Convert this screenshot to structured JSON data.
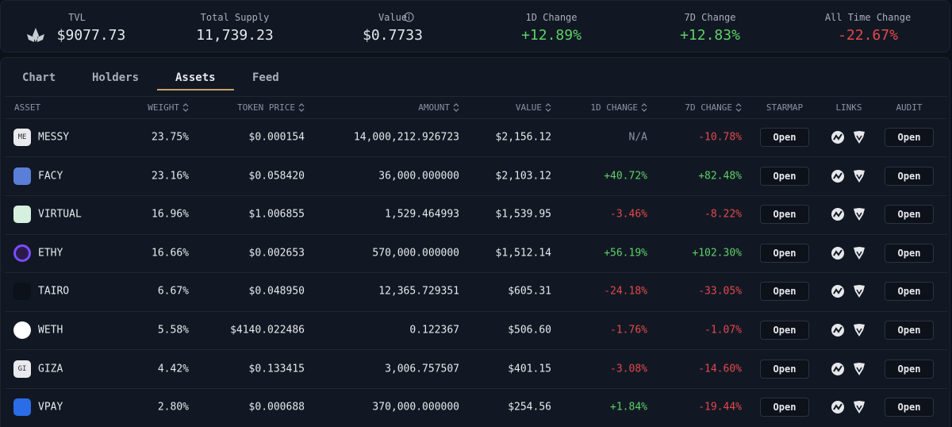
{
  "stats": [
    {
      "label": "TVL",
      "value": "$9077.73"
    },
    {
      "label": "Total Supply",
      "value": "11,739.23"
    },
    {
      "label": "Value",
      "value": "$0.7733"
    },
    {
      "label": "1D Change",
      "value": "+12.89%"
    },
    {
      "label": "7D Change",
      "value": "+12.83%"
    },
    {
      "label": "All Time Change",
      "value": "-22.67%"
    }
  ],
  "tabs": [
    "Chart",
    "Holders",
    "Assets",
    "Feed"
  ],
  "table": {
    "headers": [
      "ASSET",
      "WEIGHT",
      "TOKEN PRICE",
      "AMOUNT",
      "VALUE",
      "1D CHANGE",
      "7D CHANGE",
      "STARMAP",
      "LINKS",
      "AUDIT"
    ],
    "rows": [
      {
        "icon": "ME",
        "asset": "MESSY",
        "weight": "23.75%",
        "token_price": "$0.000154",
        "amount": "14,000,212.926723",
        "value": "$2,156.12",
        "change_1d": "N/A",
        "change_7d": "-10.78%",
        "starmap": "Open",
        "audit": "Open"
      },
      {
        "asset": "FACY",
        "weight": "23.16%",
        "token_price": "$0.058420",
        "amount": "36,000.000000",
        "value": "$2,103.12",
        "change_1d": "+40.72%",
        "change_7d": "+82.48%",
        "starmap": "Open",
        "audit": "Open"
      },
      {
        "asset": "VIRTUAL",
        "weight": "16.96%",
        "token_price": "$1.006855",
        "amount": "1,529.464993",
        "value": "$1,539.95",
        "change_1d": "-3.46%",
        "change_7d": "-8.22%",
        "starmap": "Open",
        "audit": "Open"
      },
      {
        "asset": "ETHY",
        "weight": "16.66%",
        "token_price": "$0.002653",
        "amount": "570,000.000000",
        "value": "$1,512.14",
        "change_1d": "+56.19%",
        "change_7d": "+102.30%",
        "starmap": "Open",
        "audit": "Open"
      },
      {
        "asset": "TAIRO",
        "weight": "6.67%",
        "token_price": "$0.048950",
        "amount": "12,365.729351",
        "value": "$605.31",
        "change_1d": "-24.18%",
        "change_7d": "-33.05%",
        "starmap": "Open",
        "audit": "Open"
      },
      {
        "asset": "WETH",
        "weight": "5.58%",
        "token_price": "$4140.022486",
        "amount": "0.122367",
        "value": "$506.60",
        "change_1d": "-1.76%",
        "change_7d": "-1.07%",
        "starmap": "Open",
        "audit": "Open"
      },
      {
        "icon": "GI",
        "asset": "GIZA",
        "weight": "4.42%",
        "token_price": "$0.133415",
        "amount": "3,006.757507",
        "value": "$401.15",
        "change_1d": "-3.08%",
        "change_7d": "-14.60%",
        "starmap": "Open",
        "audit": "Open"
      },
      {
        "asset": "VPAY",
        "weight": "2.80%",
        "token_price": "$0.000688",
        "amount": "370,000.000000",
        "value": "$254.56",
        "change_1d": "+1.84%",
        "change_7d": "-19.44%",
        "starmap": "Open",
        "audit": "Open"
      }
    ]
  }
}
